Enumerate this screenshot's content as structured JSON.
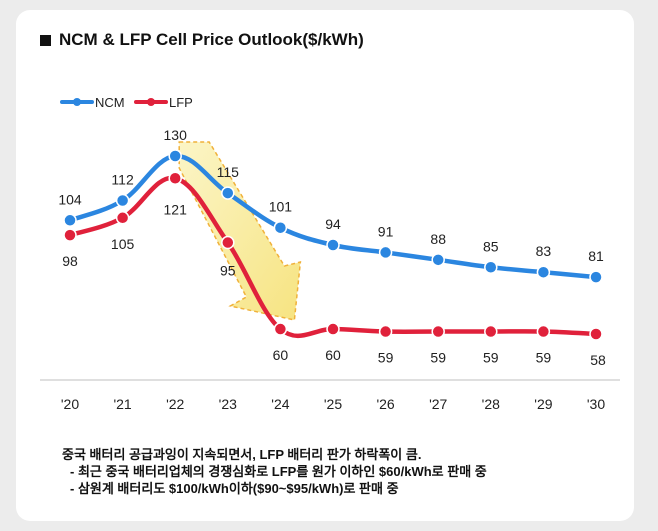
{
  "title": "NCM & LFP Cell Price Outlook($/kWh)",
  "notes": {
    "main": "중국 배터리 공급과잉이 지속되면서, LFP 배터리 판가 하락폭이 큼.",
    "bullets": [
      "- 최근 중국 배터리업체의 경쟁심화로 LFP를 원가 이하인 $60/kWh로 판매 중",
      "- 삼원계 배터리도 $100/kWh이하($90~$95/kWh)로 판매 중"
    ]
  },
  "chart_data": {
    "type": "line",
    "title": "NCM & LFP Cell Price Outlook($/kWh)",
    "categories": [
      "'20",
      "'21",
      "'22",
      "'23",
      "'24",
      "'25",
      "'26",
      "'27",
      "'28",
      "'29",
      "'30"
    ],
    "series": [
      {
        "name": "NCM",
        "color": "#2b86e0",
        "values": [
          104,
          112,
          130,
          115,
          101,
          94,
          91,
          88,
          85,
          83,
          81
        ]
      },
      {
        "name": "LFP",
        "color": "#e0213b",
        "values": [
          98,
          105,
          121,
          95,
          60,
          60,
          59,
          59,
          59,
          59,
          58
        ]
      }
    ],
    "legend_position": "top-left",
    "grid": false,
    "annotation": "downward arrow from '22 to '24 highlighting LFP price drop"
  }
}
